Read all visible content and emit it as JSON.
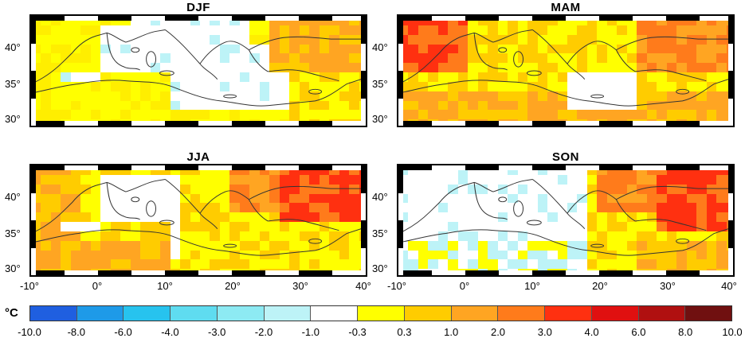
{
  "panels": [
    {
      "title": "DJF"
    },
    {
      "title": "MAM"
    },
    {
      "title": "JJA"
    },
    {
      "title": "SON"
    }
  ],
  "lat_labels": [
    "40°",
    "35°",
    "30°"
  ],
  "lon_labels": [
    "-10°",
    "0°",
    "10°",
    "20°",
    "30°",
    "40°"
  ],
  "unit": "°C",
  "colorbar": {
    "labels": [
      "-10.0",
      "-8.0",
      "-6.0",
      "-4.0",
      "-3.0",
      "-2.0",
      "-1.0",
      "-0.3",
      "0.3",
      "1.0",
      "2.0",
      "3.0",
      "4.0",
      "6.0",
      "8.0",
      "10.0"
    ],
    "colors": [
      "#1f5fe0",
      "#1e9ae8",
      "#27c3ee",
      "#5fdcf0",
      "#8deaf3",
      "#bdf3f7",
      "#ffffff",
      "#ffff00",
      "#ffcc00",
      "#ffa522",
      "#ff7b1b",
      "#ff3010",
      "#e01010",
      "#b01010",
      "#701010"
    ]
  },
  "map_extent": {
    "lon": [
      -10,
      40
    ],
    "lat": [
      29,
      45
    ]
  }
}
